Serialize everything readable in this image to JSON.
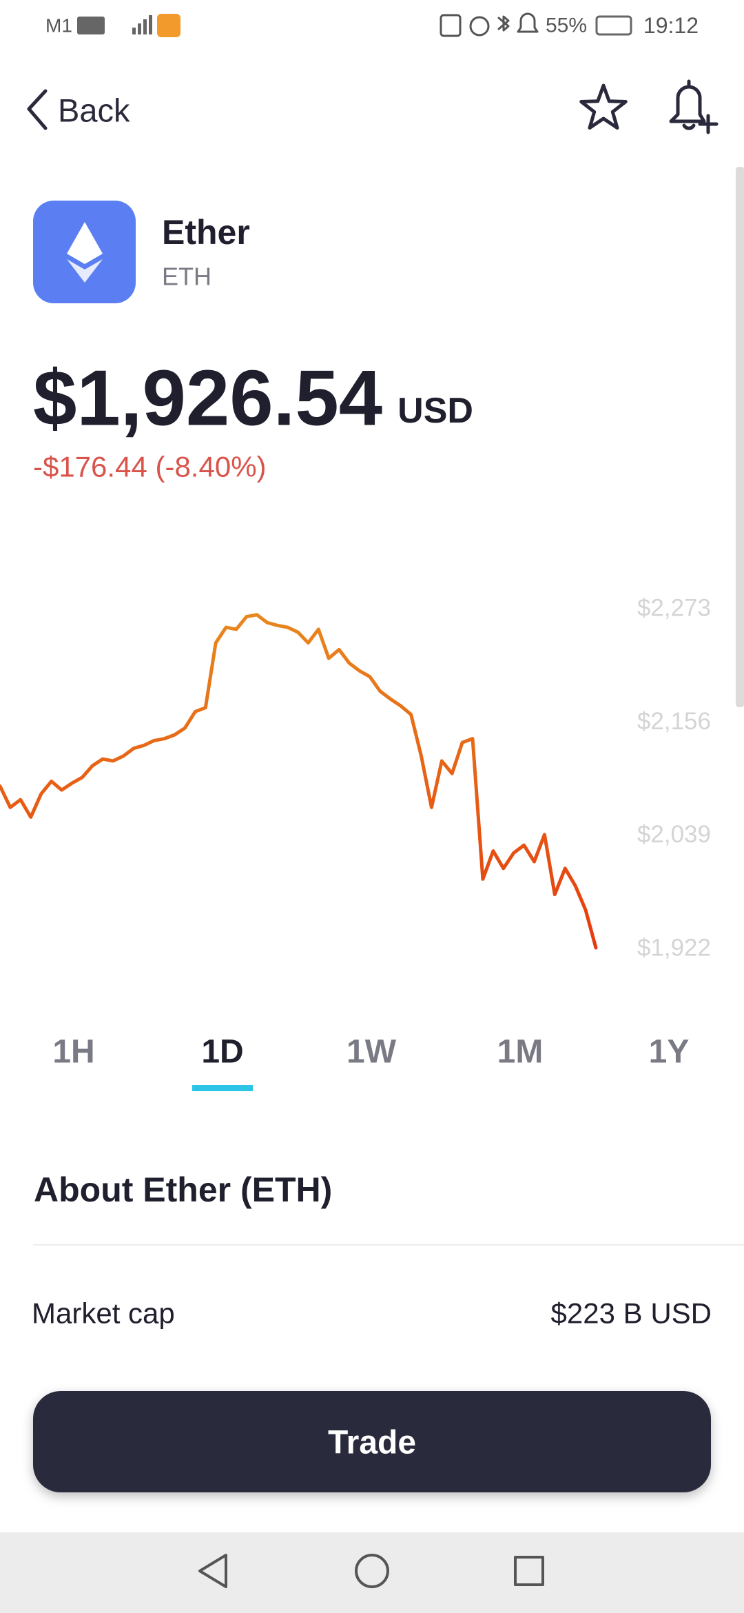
{
  "status_bar": {
    "carrier": "M1",
    "battery": "55%",
    "time": "19:12"
  },
  "header": {
    "back": "Back"
  },
  "asset": {
    "name": "Ether",
    "symbol": "ETH",
    "price": "$1,926.54",
    "currency": "USD",
    "change": "-$176.44 (-8.40%)"
  },
  "chart_data": {
    "type": "line",
    "values": [
      2089,
      2067,
      2075,
      2057,
      2081,
      2094,
      2085,
      2092,
      2098,
      2110,
      2117,
      2115,
      2120,
      2128,
      2131,
      2136,
      2138,
      2142,
      2149,
      2166,
      2170,
      2237,
      2253,
      2251,
      2264,
      2266,
      2258,
      2255,
      2253,
      2248,
      2237,
      2251,
      2221,
      2230,
      2216,
      2208,
      2202,
      2187,
      2179,
      2172,
      2163,
      2120,
      2067,
      2115,
      2102,
      2134,
      2138,
      1993,
      2022,
      2004,
      2020,
      2028,
      2011,
      2039,
      1977,
      2004,
      1986,
      1961,
      1922
    ],
    "colors": [
      "#e8891e",
      "#e63a0e"
    ],
    "ylim": [
      1922,
      2273
    ],
    "yticks": [
      {
        "value": 2273,
        "label": "$2,273"
      },
      {
        "value": 2156,
        "label": "$2,156"
      },
      {
        "value": 2039,
        "label": "$2,039"
      },
      {
        "value": 1922,
        "label": "$1,922"
      }
    ]
  },
  "ranges": {
    "options": [
      "1H",
      "1D",
      "1W",
      "1M",
      "1Y"
    ],
    "selected": "1D"
  },
  "about": {
    "title": "About Ether (ETH)",
    "rows": [
      {
        "label": "Market cap",
        "value": "$223 B USD"
      }
    ]
  },
  "actions": {
    "trade": "Trade"
  }
}
